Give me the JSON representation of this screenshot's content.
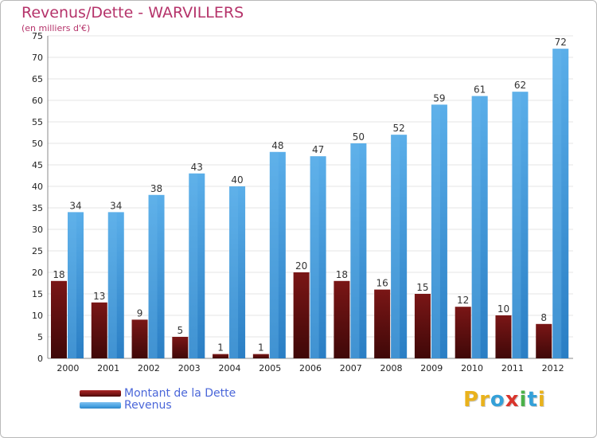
{
  "header": {
    "title": "Revenus/Dette - WARVILLERS",
    "subtitle": "(en milliers d'€)"
  },
  "colors": {
    "dette": "#7a1616",
    "revenus": "#4aa3e2",
    "axis_text": "#222222",
    "grid": "#e6e6e6"
  },
  "legend": {
    "dette_label": "Montant de la Dette",
    "revenus_label": "Revenus"
  },
  "logo": {
    "text": "Proxiti",
    "letters": [
      {
        "char": "P",
        "color": "#e9b21c"
      },
      {
        "char": "r",
        "color": "#e9b21c"
      },
      {
        "char": "o",
        "color": "#34a0d8"
      },
      {
        "char": "x",
        "color": "#d9342b"
      },
      {
        "char": "i",
        "color": "#4bb14a"
      },
      {
        "char": "t",
        "color": "#34a0d8"
      },
      {
        "char": "i",
        "color": "#e9b21c"
      }
    ]
  },
  "chart_data": {
    "type": "bar",
    "categories": [
      "2000",
      "2001",
      "2002",
      "2003",
      "2004",
      "2005",
      "2006",
      "2007",
      "2008",
      "2009",
      "2010",
      "2011",
      "2012"
    ],
    "series": [
      {
        "name": "Montant de la Dette",
        "values": [
          18,
          13,
          9,
          5,
          1,
          1,
          20,
          18,
          16,
          15,
          12,
          10,
          8
        ]
      },
      {
        "name": "Revenus",
        "values": [
          34,
          34,
          38,
          43,
          40,
          48,
          47,
          50,
          52,
          59,
          61,
          62,
          72
        ]
      }
    ],
    "ylim": [
      0,
      75
    ],
    "yticks": [
      0,
      5,
      10,
      15,
      20,
      25,
      30,
      35,
      40,
      45,
      50,
      55,
      60,
      65,
      70,
      75
    ],
    "grid": true,
    "legend_position": "bottom-left"
  }
}
